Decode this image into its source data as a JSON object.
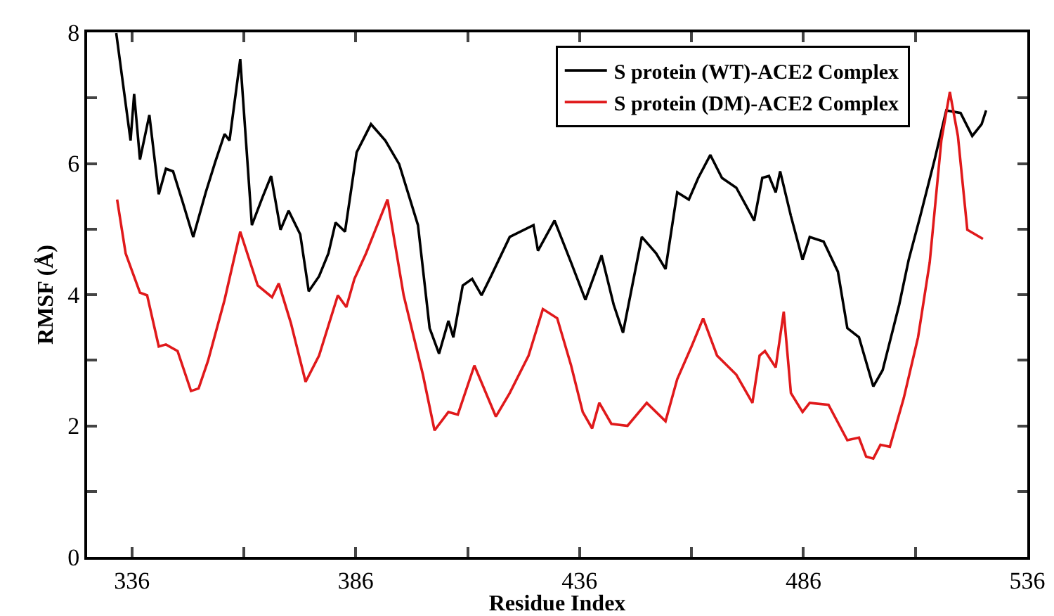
{
  "chart_data": {
    "type": "line",
    "xlabel": "Residue Index",
    "ylabel": "RMSF (Å)",
    "xlim": [
      326,
      536
    ],
    "ylim": [
      0,
      8
    ],
    "xticks": [
      336,
      {
        "value": 361,
        "label": null
      },
      386,
      {
        "value": 411,
        "label": null
      },
      436,
      {
        "value": 461,
        "label": null
      },
      486,
      {
        "value": 511,
        "label": null
      },
      536
    ],
    "yticks": [
      0,
      {
        "value": 1,
        "label": null
      },
      2,
      {
        "value": 3,
        "label": null
      },
      4,
      {
        "value": 5,
        "label": null
      },
      6,
      {
        "value": 7,
        "label": null
      },
      8
    ],
    "grid": false,
    "legend": "top right",
    "marker": "none",
    "line_style": "solid",
    "series": [
      {
        "name": "S protein (WT)-ACE2 Complex",
        "color": "#000000",
        "x": [
          332.5,
          335.7,
          336.5,
          337.8,
          339.9,
          342,
          343.6,
          345.2,
          347.3,
          349.7,
          352.5,
          354.6,
          356.7,
          357.8,
          360.2,
          362.8,
          365.2,
          367.1,
          369.2,
          371,
          373.6,
          375.5,
          377.8,
          379.9,
          381.5,
          383.6,
          386.2,
          389.4,
          392.6,
          395.7,
          399.9,
          402.5,
          404.6,
          406.7,
          407.8,
          409.9,
          412,
          414.1,
          416.2,
          420.4,
          425.7,
          426.7,
          430.4,
          434.1,
          437.3,
          440.9,
          443.6,
          445.7,
          449.9,
          453.1,
          455.2,
          457.8,
          460.4,
          462.5,
          465.2,
          467.8,
          471,
          475,
          476.8,
          478.3,
          479.8,
          480.8,
          483.2,
          485.8,
          487.4,
          490.5,
          493.7,
          495.8,
          498.4,
          501.6,
          503.7,
          507.4,
          509.5,
          512.1,
          515.3,
          517.9,
          521.1,
          523.7,
          525.8,
          526.8
        ],
        "values": [
          7.99,
          6.35,
          7.06,
          6.06,
          6.74,
          5.53,
          5.92,
          5.88,
          5.42,
          4.88,
          5.56,
          6.02,
          6.45,
          6.35,
          7.59,
          5.06,
          5.49,
          5.81,
          4.99,
          5.28,
          4.92,
          4.05,
          4.28,
          4.63,
          5.1,
          4.96,
          6.17,
          6.6,
          6.35,
          5.99,
          5.06,
          3.49,
          3.1,
          3.6,
          3.35,
          4.14,
          4.24,
          3.99,
          4.28,
          4.88,
          5.06,
          4.67,
          5.13,
          4.49,
          3.92,
          4.6,
          3.85,
          3.42,
          4.88,
          4.63,
          4.39,
          5.56,
          5.45,
          5.78,
          6.13,
          5.78,
          5.63,
          5.13,
          5.78,
          5.81,
          5.56,
          5.88,
          5.2,
          4.53,
          4.88,
          4.81,
          4.35,
          3.49,
          3.35,
          2.6,
          2.85,
          3.85,
          4.53,
          5.2,
          6.06,
          6.81,
          6.77,
          6.42,
          6.6,
          6.81
        ]
      },
      {
        "name": "S protein (DM)-ACE2 Complex",
        "color": "#e0191b",
        "x": [
          332.7,
          334.6,
          337.8,
          339.4,
          342,
          343.6,
          346.2,
          349.2,
          350.9,
          353,
          356.7,
          360.2,
          364.1,
          367.3,
          368.8,
          371.5,
          374.8,
          377.8,
          382,
          383.9,
          385.7,
          388.3,
          390.4,
          393.1,
          396.7,
          401,
          403.6,
          406.7,
          408.8,
          412.5,
          417.3,
          420.4,
          424.6,
          427.8,
          431,
          434.1,
          436.7,
          438.8,
          440.4,
          443.1,
          446.7,
          451,
          455.2,
          457.8,
          461,
          463.6,
          466.7,
          471,
          474.6,
          476.2,
          477.4,
          479.8,
          481.6,
          483.2,
          485.8,
          487.4,
          491.6,
          495.8,
          498.4,
          500,
          501.6,
          503.2,
          505.3,
          508.4,
          511.6,
          514.2,
          516.8,
          518.7,
          520.5,
          522.6,
          526.1
        ],
        "values": [
          5.45,
          4.63,
          4.03,
          3.99,
          3.21,
          3.24,
          3.14,
          2.53,
          2.57,
          2.99,
          3.92,
          4.96,
          4.14,
          3.96,
          4.17,
          3.57,
          2.67,
          3.07,
          3.99,
          3.81,
          4.24,
          4.63,
          4.99,
          5.45,
          3.99,
          2.78,
          1.93,
          2.21,
          2.17,
          2.92,
          2.14,
          2.5,
          3.07,
          3.78,
          3.64,
          2.92,
          2.21,
          1.96,
          2.35,
          2.03,
          2,
          2.35,
          2.07,
          2.71,
          3.21,
          3.64,
          3.07,
          2.78,
          2.35,
          3.07,
          3.14,
          2.89,
          3.74,
          2.5,
          2.21,
          2.35,
          2.32,
          1.78,
          1.82,
          1.53,
          1.5,
          1.71,
          1.68,
          2.42,
          3.35,
          4.49,
          6.35,
          7.09,
          6.42,
          4.99,
          4.85
        ]
      }
    ]
  }
}
